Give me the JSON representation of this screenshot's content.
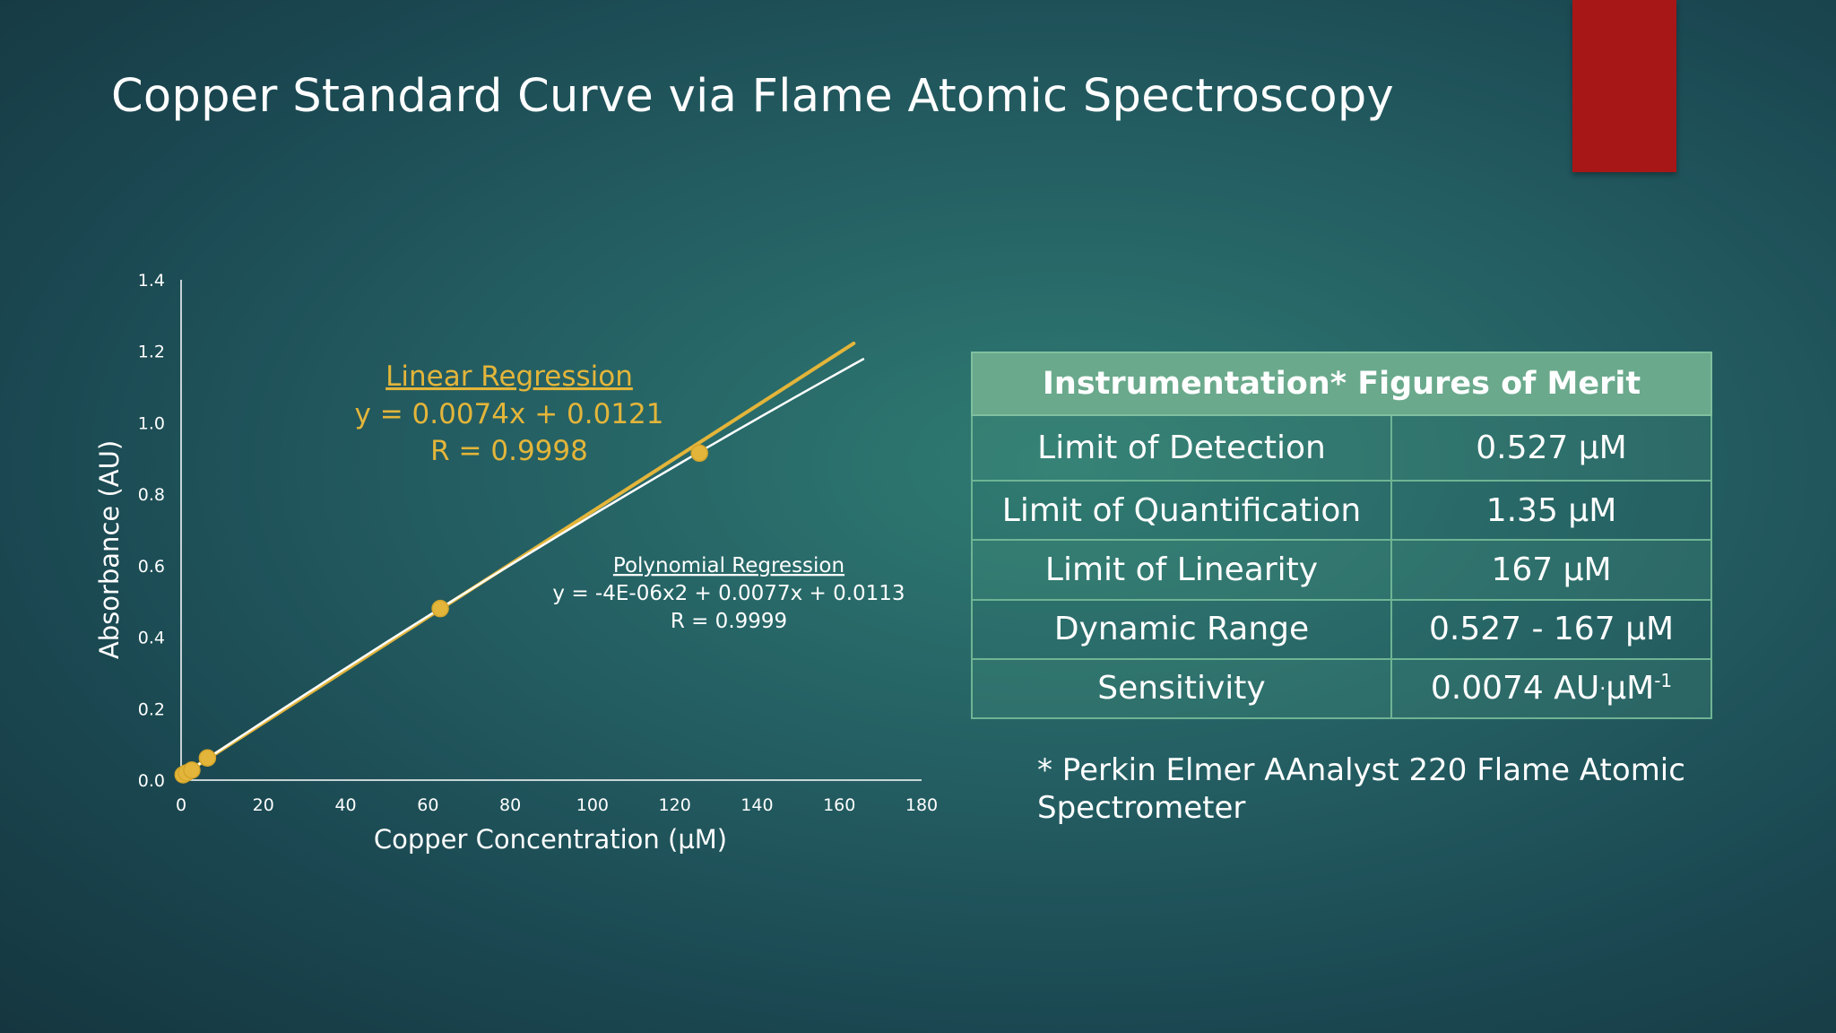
{
  "slide": {
    "title": "Copper Standard Curve via Flame Atomic Spectroscopy",
    "accent_color": "#a71718"
  },
  "chart_data": {
    "type": "scatter",
    "xlabel": "Copper Concentration (µM)",
    "ylabel": "Absorbance (AU)",
    "xlim": [
      0,
      180
    ],
    "ylim": [
      0,
      1.4
    ],
    "x_ticks": [
      "0",
      "20",
      "40",
      "60",
      "80",
      "100",
      "120",
      "140",
      "160",
      "180"
    ],
    "y_ticks": [
      "0.0",
      "0.2",
      "0.4",
      "0.6",
      "0.8",
      "1.0",
      "1.2",
      "1.4"
    ],
    "grid": false,
    "series": [
      {
        "points": [
          [
            0.5,
            0.015
          ],
          [
            1.3,
            0.02
          ],
          [
            2.6,
            0.028
          ],
          [
            6.4,
            0.062
          ],
          [
            63,
            0.48
          ],
          [
            126,
            0.915
          ]
        ],
        "color": "#e3b53a"
      }
    ],
    "trendlines": [
      {
        "kind": "linear",
        "slope": 0.0074,
        "intercept": 0.0121,
        "x_range": [
          0,
          163.5
        ],
        "color": "#e3b53a"
      },
      {
        "kind": "polynomial",
        "a": -4e-06,
        "b": 0.0077,
        "c": 0.0113,
        "x_range": [
          0,
          166
        ],
        "color": "#ffffff"
      }
    ],
    "annotations": {
      "linear": {
        "heading": "Linear Regression",
        "equation": "y = 0.0074x + 0.0121",
        "r": "R = 0.9998",
        "color": "#e3b53a"
      },
      "polynomial": {
        "heading": "Polynomial Regression",
        "equation": "y = -4E-06x2 + 0.0077x + 0.0113",
        "r": "R = 0.9999",
        "color": "#ffffff"
      }
    }
  },
  "table": {
    "header": "Instrumentation* Figures of Merit",
    "rows": [
      {
        "label": "Limit of Detection",
        "value": "0.527 µM"
      },
      {
        "label": "Limit of Quantification",
        "value": "1.35 µM"
      },
      {
        "label": "Limit of Linearity",
        "value": "167 µM"
      },
      {
        "label": "Dynamic Range",
        "value": "0.527 - 167 µM"
      },
      {
        "label": "Sensitivity",
        "value_main": "0.0074 AU",
        "value_sep": "·",
        "value_unit": "µM",
        "value_sup": "-1"
      }
    ],
    "header_color": "#6aa98c"
  },
  "footnote": "* Perkin Elmer AAnalyst 220 Flame Atomic Spectrometer"
}
